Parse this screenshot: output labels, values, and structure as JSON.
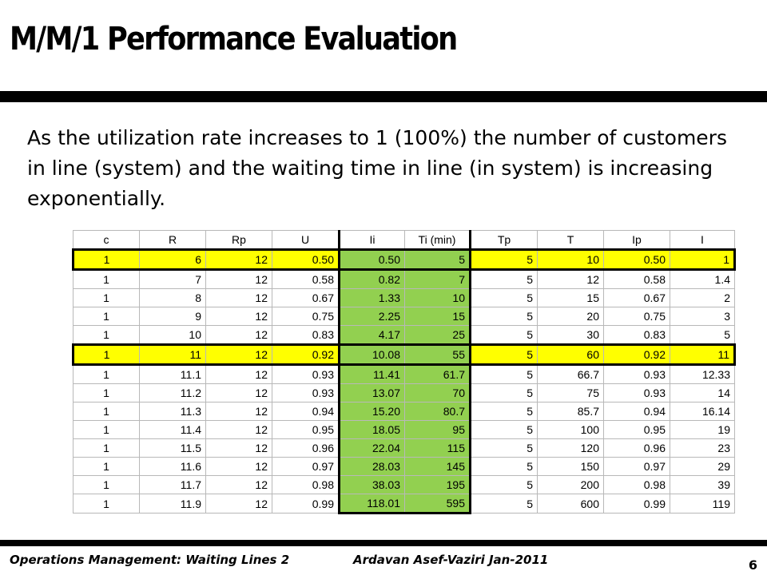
{
  "slide": {
    "title": "M/M/1 Performance Evaluation",
    "intro": "As the utilization rate increases to 1 (100%) the number of customers in line (system) and the waiting time in line (in system) is increasing exponentially.",
    "colors": {
      "highlight_row": "#ffff00",
      "highlight_column": "#92d050",
      "rule": "#000000"
    }
  },
  "table": {
    "headers": [
      "c",
      "R",
      "Rp",
      "U",
      "Ii",
      "Ti (min)",
      "Tp",
      "T",
      "Ip",
      "I"
    ],
    "rows": [
      {
        "cells": [
          "1",
          "6",
          "12",
          "0.50",
          "0.50",
          "5",
          "5",
          "10",
          "0.50",
          "1"
        ],
        "highlight": true
      },
      {
        "cells": [
          "1",
          "7",
          "12",
          "0.58",
          "0.82",
          "7",
          "5",
          "12",
          "0.58",
          "1.4"
        ],
        "highlight": false
      },
      {
        "cells": [
          "1",
          "8",
          "12",
          "0.67",
          "1.33",
          "10",
          "5",
          "15",
          "0.67",
          "2"
        ],
        "highlight": false
      },
      {
        "cells": [
          "1",
          "9",
          "12",
          "0.75",
          "2.25",
          "15",
          "5",
          "20",
          "0.75",
          "3"
        ],
        "highlight": false
      },
      {
        "cells": [
          "1",
          "10",
          "12",
          "0.83",
          "4.17",
          "25",
          "5",
          "30",
          "0.83",
          "5"
        ],
        "highlight": false
      },
      {
        "cells": [
          "1",
          "11",
          "12",
          "0.92",
          "10.08",
          "55",
          "5",
          "60",
          "0.92",
          "11"
        ],
        "highlight": true
      },
      {
        "cells": [
          "1",
          "11.1",
          "12",
          "0.93",
          "11.41",
          "61.7",
          "5",
          "66.7",
          "0.93",
          "12.33"
        ],
        "highlight": false
      },
      {
        "cells": [
          "1",
          "11.2",
          "12",
          "0.93",
          "13.07",
          "70",
          "5",
          "75",
          "0.93",
          "14"
        ],
        "highlight": false
      },
      {
        "cells": [
          "1",
          "11.3",
          "12",
          "0.94",
          "15.20",
          "80.7",
          "5",
          "85.7",
          "0.94",
          "16.14"
        ],
        "highlight": false
      },
      {
        "cells": [
          "1",
          "11.4",
          "12",
          "0.95",
          "18.05",
          "95",
          "5",
          "100",
          "0.95",
          "19"
        ],
        "highlight": false
      },
      {
        "cells": [
          "1",
          "11.5",
          "12",
          "0.96",
          "22.04",
          "115",
          "5",
          "120",
          "0.96",
          "23"
        ],
        "highlight": false
      },
      {
        "cells": [
          "1",
          "11.6",
          "12",
          "0.97",
          "28.03",
          "145",
          "5",
          "150",
          "0.97",
          "29"
        ],
        "highlight": false
      },
      {
        "cells": [
          "1",
          "11.7",
          "12",
          "0.98",
          "38.03",
          "195",
          "5",
          "200",
          "0.98",
          "39"
        ],
        "highlight": false
      },
      {
        "cells": [
          "1",
          "11.9",
          "12",
          "0.99",
          "118.01",
          "595",
          "5",
          "600",
          "0.99",
          "119"
        ],
        "highlight": false
      }
    ]
  },
  "footer": {
    "course": "Operations Management: Waiting Lines 2",
    "author_date": "Ardavan Asef-Vaziri   Jan-2011",
    "page_number": "6"
  }
}
